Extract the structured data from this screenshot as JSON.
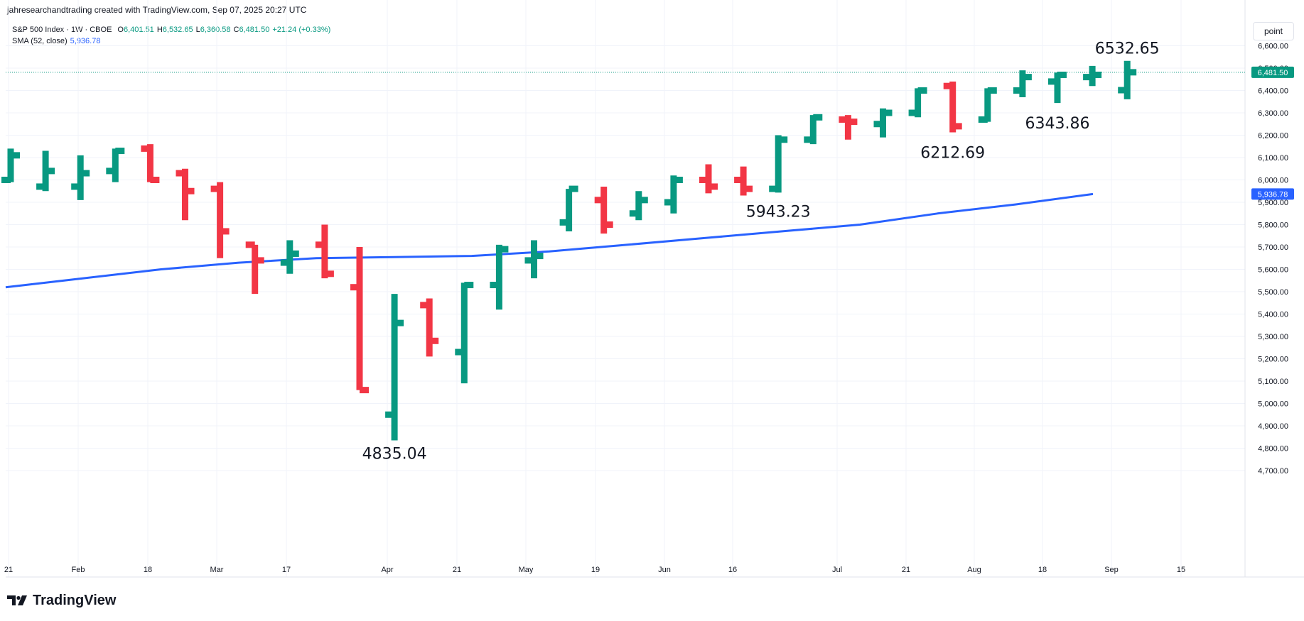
{
  "header": {
    "credit": "jahresearchandtrading created with TradingView.com, Sep 07, 2025 20:27 UTC"
  },
  "legend": {
    "symbol": "S&P 500 Index · 1W · CBOE",
    "open_label": "O",
    "open": "6,401.51",
    "high_label": "H",
    "high": "6,532.65",
    "low_label": "L",
    "low": "6,360.58",
    "close_label": "C",
    "close": "6,481.50",
    "change": "+21.24 (+0.33%)",
    "sma_label": "SMA (52, close)",
    "sma_value": "5,936.78"
  },
  "price_axis": {
    "unit_button": "point",
    "ticks": [
      "6,600.00",
      "6,500.00",
      "6,400.00",
      "6,300.00",
      "6,200.00",
      "6,100.00",
      "6,000.00",
      "5,900.00",
      "5,800.00",
      "5,700.00",
      "5,600.00",
      "5,500.00",
      "5,400.00",
      "5,300.00",
      "5,200.00",
      "5,100.00",
      "5,000.00",
      "4,900.00",
      "4,800.00",
      "4,700.00"
    ],
    "last_price_label": "6,481.50",
    "sma_price_label": "5,936.78"
  },
  "time_axis": {
    "ticks": [
      "21",
      "Feb",
      "18",
      "Mar",
      "17",
      "Apr",
      "21",
      "May",
      "19",
      "Jun",
      "16",
      "Jul",
      "21",
      "Aug",
      "18",
      "Sep",
      "15"
    ]
  },
  "annotations": [
    "4835.04",
    "5943.23",
    "6212.69",
    "6343.86",
    "6532.65"
  ],
  "branding": {
    "logo_text": "TradingView"
  },
  "colors": {
    "up": "#089981",
    "down": "#f23645",
    "sma": "#2962ff",
    "grid": "#f0f3fa",
    "axis_text": "#131722"
  },
  "chart_data": {
    "type": "ohlc",
    "title": "S&P 500 Index · 1W · CBOE",
    "ylim": [
      4650,
      6690
    ],
    "grid": true,
    "candles": [
      {
        "o": 6000,
        "h": 6140,
        "l": 5990,
        "c": 6110
      },
      {
        "o": 5970,
        "h": 6130,
        "l": 5950,
        "c": 6040
      },
      {
        "o": 5970,
        "h": 6110,
        "l": 5910,
        "c": 6030
      },
      {
        "o": 6040,
        "h": 6140,
        "l": 5990,
        "c": 6130
      },
      {
        "o": 6140,
        "h": 6160,
        "l": 5990,
        "c": 6000
      },
      {
        "o": 6030,
        "h": 6050,
        "l": 5820,
        "c": 5950
      },
      {
        "o": 5960,
        "h": 5990,
        "l": 5650,
        "c": 5770
      },
      {
        "o": 5710,
        "h": 5710,
        "l": 5490,
        "c": 5640
      },
      {
        "o": 5630,
        "h": 5730,
        "l": 5580,
        "c": 5670
      },
      {
        "o": 5710,
        "h": 5800,
        "l": 5560,
        "c": 5580
      },
      {
        "o": 5520,
        "h": 5700,
        "l": 5060,
        "c": 5060
      },
      {
        "o": 4950,
        "h": 5490,
        "l": 4835.04,
        "c": 5360
      },
      {
        "o": 5440,
        "h": 5470,
        "l": 5210,
        "c": 5280
      },
      {
        "o": 5230,
        "h": 5540,
        "l": 5090,
        "c": 5530
      },
      {
        "o": 5530,
        "h": 5710,
        "l": 5420,
        "c": 5690
      },
      {
        "o": 5640,
        "h": 5730,
        "l": 5560,
        "c": 5660
      },
      {
        "o": 5810,
        "h": 5960,
        "l": 5770,
        "c": 5960
      },
      {
        "o": 5910,
        "h": 5970,
        "l": 5760,
        "c": 5800
      },
      {
        "o": 5850,
        "h": 5950,
        "l": 5820,
        "c": 5910
      },
      {
        "o": 5900,
        "h": 6020,
        "l": 5850,
        "c": 6000
      },
      {
        "o": 6000,
        "h": 6070,
        "l": 5940,
        "c": 5970
      },
      {
        "o": 6000,
        "h": 6060,
        "l": 5930,
        "c": 5960
      },
      {
        "o": 5960,
        "h": 6200,
        "l": 5943.23,
        "c": 6180
      },
      {
        "o": 6180,
        "h": 6290,
        "l": 6160,
        "c": 6280
      },
      {
        "o": 6270,
        "h": 6290,
        "l": 6180,
        "c": 6260
      },
      {
        "o": 6250,
        "h": 6320,
        "l": 6190,
        "c": 6300
      },
      {
        "o": 6300,
        "h": 6410,
        "l": 6280,
        "c": 6400
      },
      {
        "o": 6420,
        "h": 6440,
        "l": 6212.69,
        "c": 6240
      },
      {
        "o": 6270,
        "h": 6410,
        "l": 6260,
        "c": 6400
      },
      {
        "o": 6400,
        "h": 6490,
        "l": 6370,
        "c": 6460
      },
      {
        "o": 6440,
        "h": 6480,
        "l": 6343.86,
        "c": 6470
      },
      {
        "o": 6460,
        "h": 6510,
        "l": 6420,
        "c": 6470
      },
      {
        "o": 6401.51,
        "h": 6532.65,
        "l": 6360.58,
        "c": 6481.5
      }
    ],
    "sma": {
      "name": "SMA (52, close)",
      "values": [
        5520,
        5560,
        5600,
        5630,
        5650,
        5655,
        5660,
        5680,
        5710,
        5740,
        5770,
        5800,
        5850,
        5890,
        5936.78
      ]
    },
    "last_price": 6481.5
  }
}
